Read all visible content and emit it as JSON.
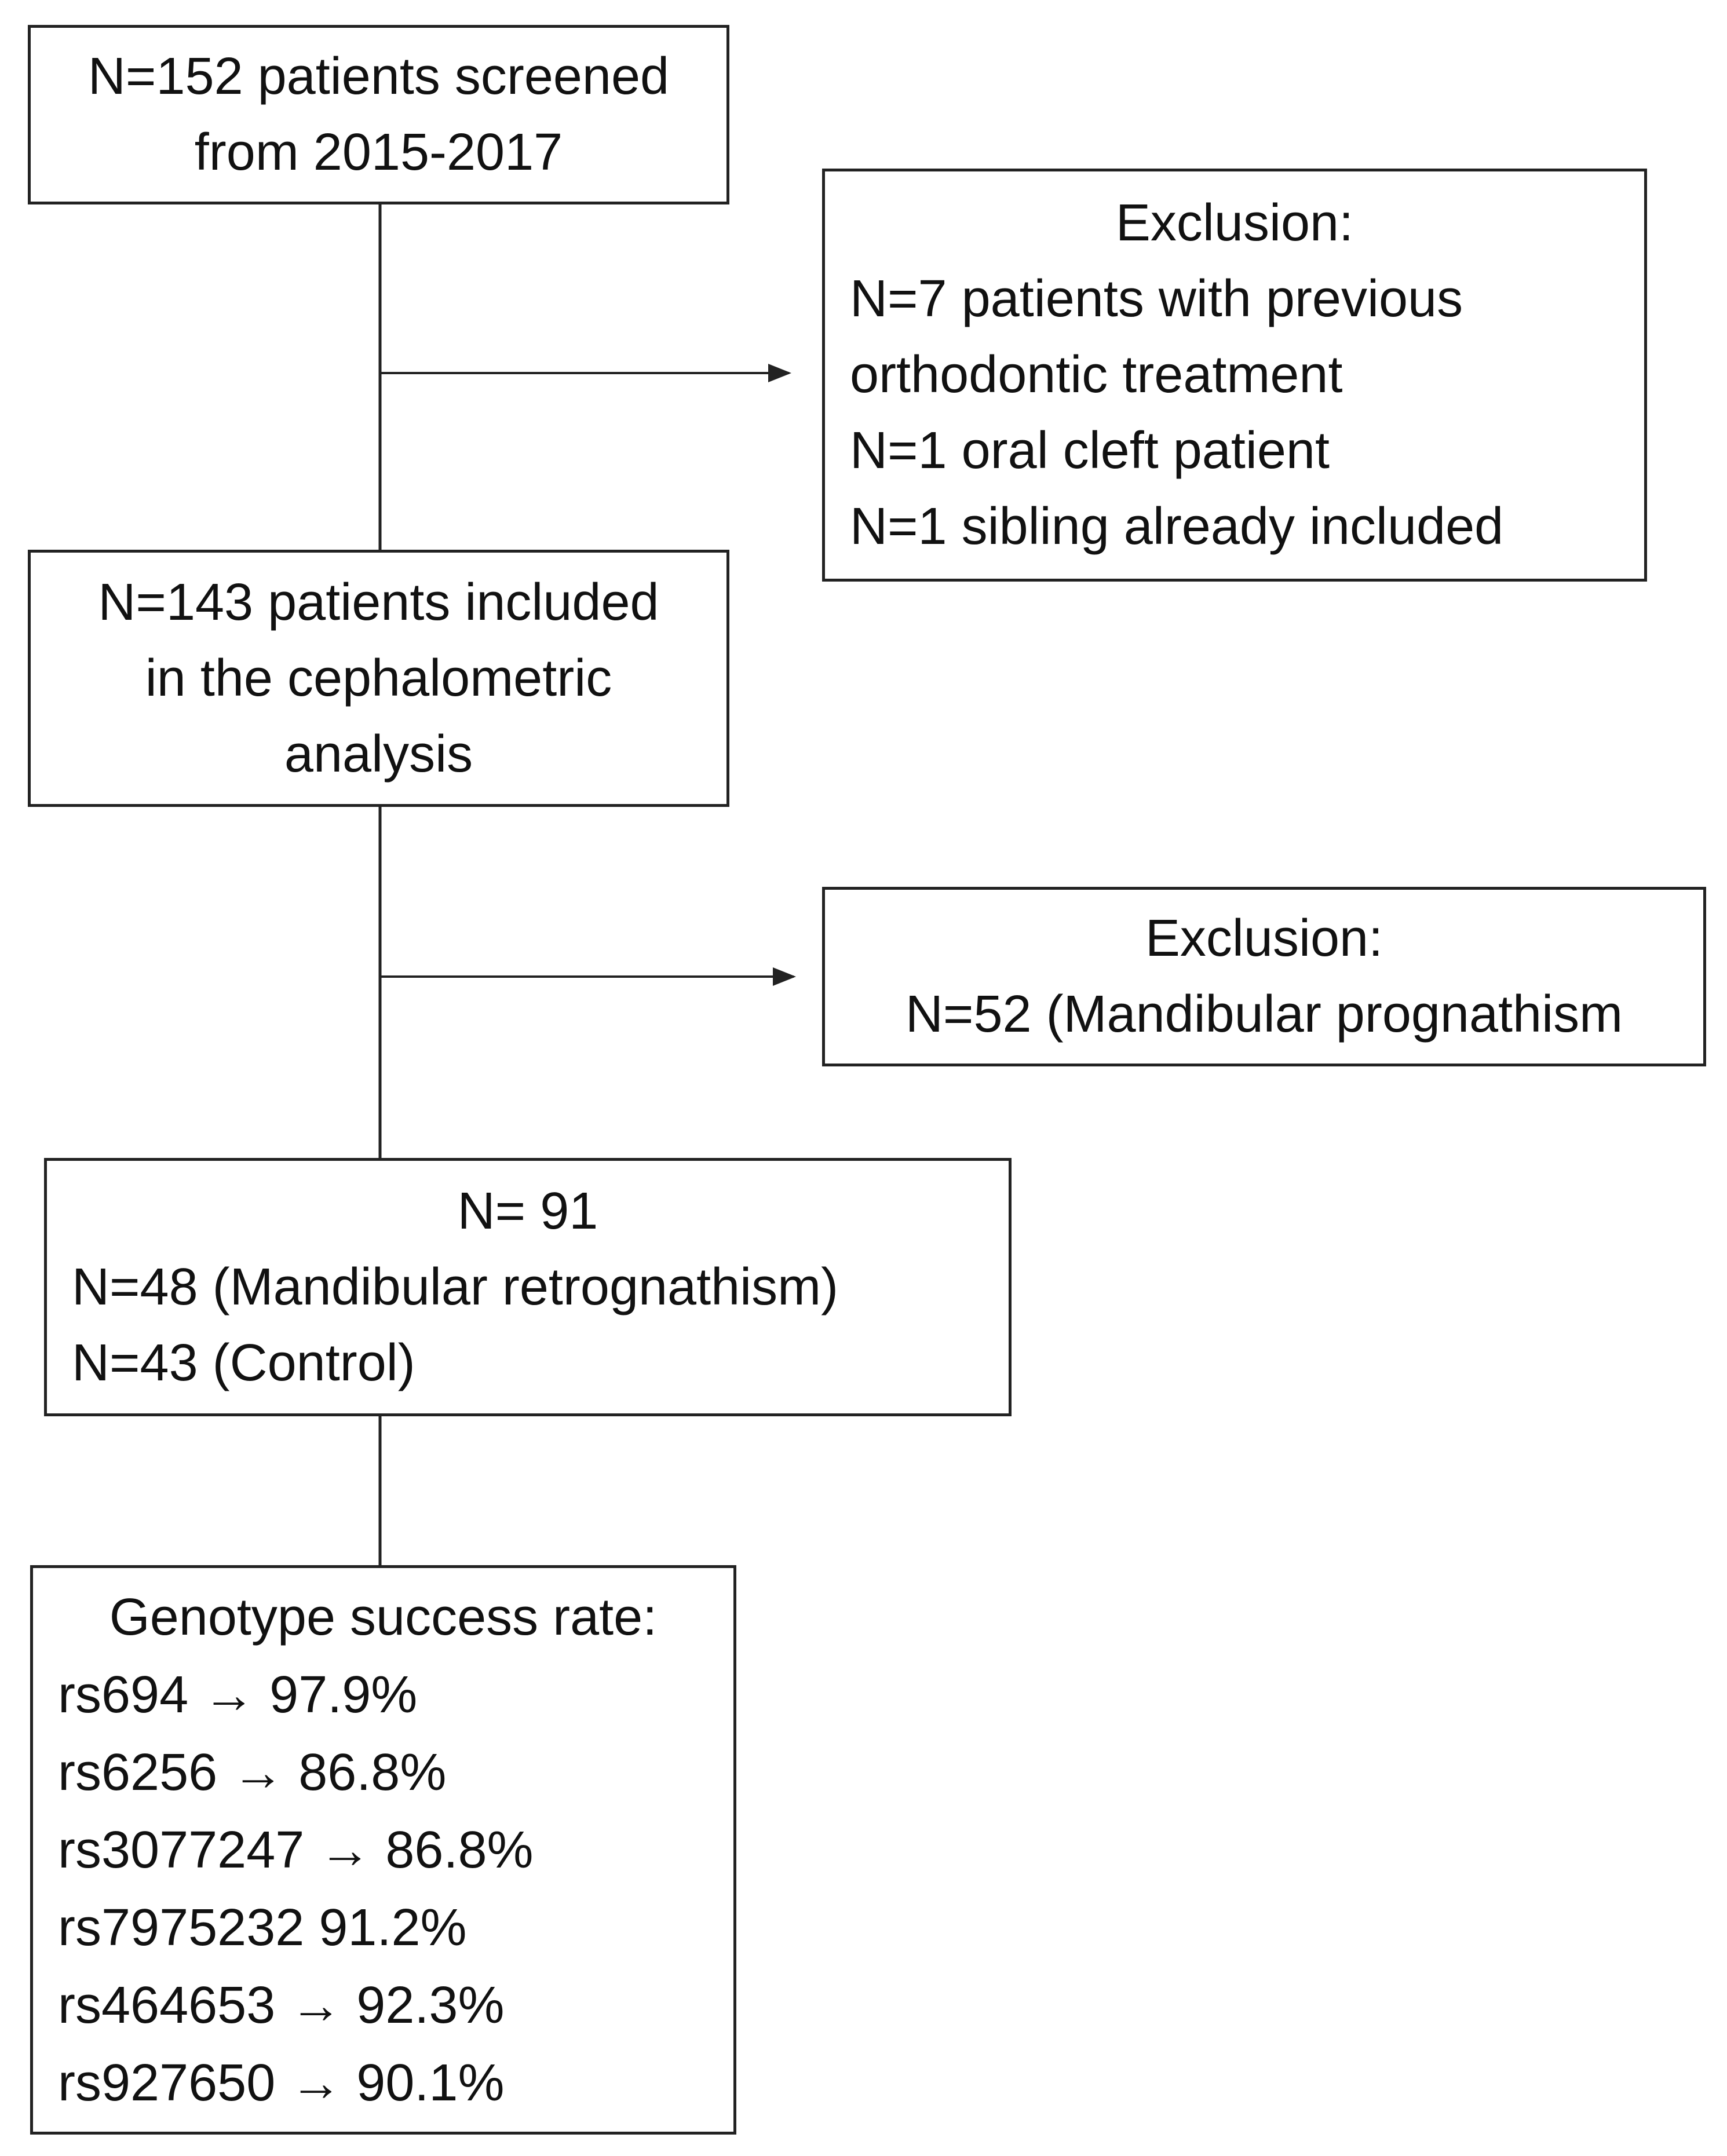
{
  "nodes": [
    {
      "lines": [
        "N=152 patients screened",
        "from 2015-2017"
      ]
    },
    {
      "lines": [
        "Exclusion:",
        "N=7 patients with previous",
        "orthodontic treatment",
        "N=1 oral cleft patient",
        "N=1 sibling already included"
      ]
    },
    {
      "lines": [
        "N=143 patients included",
        "in the cephalometric",
        "analysis"
      ]
    },
    {
      "lines": [
        "Exclusion:",
        "N=52 (Mandibular prognathism"
      ]
    },
    {
      "lines": [
        "N= 91",
        "N=48 (Mandibular retrognathism)",
        "N=43 (Control)"
      ]
    },
    {
      "lines": [
        "Genotype success rate:",
        "rs694 → 97.9%",
        "rs6256 → 86.8%",
        "rs3077247 → 86.8%",
        "rs7975232 91.2%",
        "rs464653 → 92.3%",
        "rs927650 → 90.1%"
      ]
    }
  ]
}
